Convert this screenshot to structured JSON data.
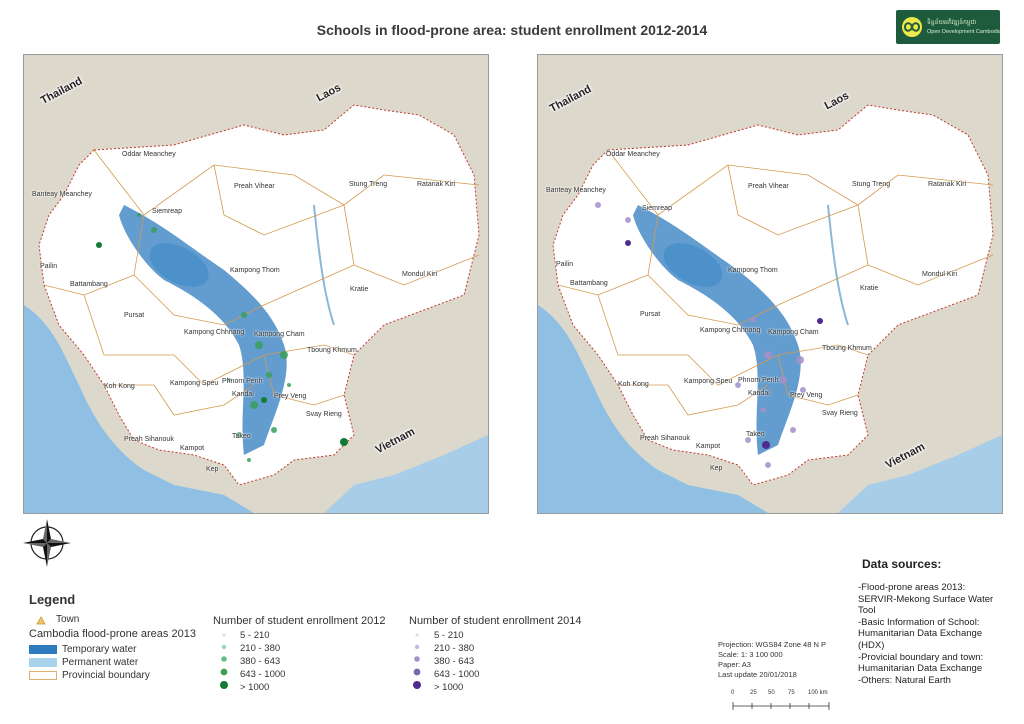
{
  "title": "Schools in flood-prone area: student enrollment 2012-2014",
  "logo": {
    "line1": "ទិន្នន័យអភិវឌ្ឍន៍កម្ពុជា",
    "line2": "Open Development Cambodia"
  },
  "maps": {
    "countries": [
      "Thailand",
      "Laos",
      "Vietnam"
    ],
    "provinces": [
      "Oddar Meanchey",
      "Banteay Meanchey",
      "Preah Vihear",
      "Stung Treng",
      "Ratanak Kiri",
      "Siemreap",
      "Pailin",
      "Battambang",
      "Kampong Thom",
      "Mondul Kiri",
      "Kratie",
      "Pursat",
      "Kampong Chhnang",
      "Kampong Cham",
      "Tboung Khmum",
      "Koh Kong",
      "Kampong Speu",
      "Phnom Penh",
      "Kandal",
      "Prey Veng",
      "Svay Rieng",
      "Preah Sihanouk",
      "Kampot",
      "Takeo",
      "Kep"
    ]
  },
  "legend": {
    "title": "Legend",
    "town": "Town",
    "flood_title": "Cambodia flood-prone areas 2013",
    "flood_items": [
      "Temporary water",
      "Permanent water",
      "Provincial boundary"
    ],
    "enroll2012_title": "Number of student enrollment 2012",
    "enroll2014_title": "Number of student enrollment 2014",
    "classes": [
      "5 - 210",
      "210 - 380",
      "380 - 643",
      "643 - 1000",
      "> 1000"
    ],
    "colors": {
      "temporary_water": "#2f7bbf",
      "permanent_water": "#a9d3ea",
      "green": [
        "#cfe6d2",
        "#a2d3b0",
        "#6dbb88",
        "#38a05c",
        "#137a36"
      ],
      "purple": [
        "#e3dcee",
        "#c6b9df",
        "#a491c9",
        "#7c66b0",
        "#4f2c8f"
      ]
    }
  },
  "meta": {
    "projection": "Projection: WGS84 Zone 48 N P",
    "scale": "Scale: 1: 3 100 000",
    "paper": "Paper: A3",
    "updated": "Last update 20/01/2018"
  },
  "scalebar": [
    "0",
    "25",
    "50",
    "75",
    "100 km"
  ],
  "data_sources": {
    "title": "Data sources:",
    "lines": [
      "-Flood-prone areas 2013:",
      "SERVIR-Mekong Surface Water",
      "Tool",
      "-Basic Information of School:",
      "Humanitarian Data Exchange",
      "(HDX)",
      "-Provicial boundary and town:",
      "Humanitarian Data Exchange",
      "-Others: Natural Earth"
    ]
  }
}
